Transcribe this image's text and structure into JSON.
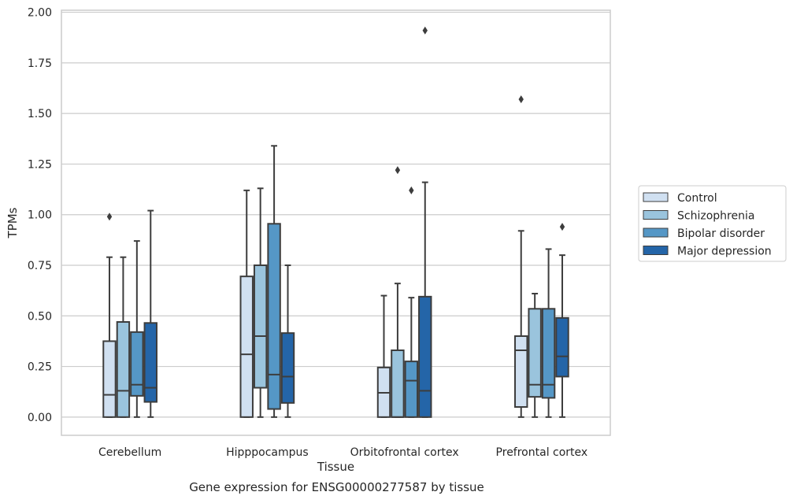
{
  "chart_data": {
    "type": "box",
    "xlabel": "Tissue",
    "ylabel": "TPMs",
    "ylim": [
      -0.09,
      2.01
    ],
    "yticks": [
      "0.00",
      "0.25",
      "0.50",
      "0.75",
      "1.00",
      "1.25",
      "1.50",
      "1.75",
      "2.00"
    ],
    "grid": true,
    "legend_position": "right",
    "categories": [
      "Cerebellum",
      "Hipppocampus",
      "Orbitofrontal cortex",
      "Prefrontal cortex"
    ],
    "series": [
      {
        "name": "Control",
        "color": "#d0e0f1",
        "boxes": [
          {
            "whislo": 0.0,
            "q1": 0.0,
            "med": 0.11,
            "q3": 0.375,
            "whishi": 0.79,
            "fliers": [
              0.99
            ]
          },
          {
            "whislo": 0.0,
            "q1": 0.0,
            "med": 0.31,
            "q3": 0.695,
            "whishi": 1.12,
            "fliers": []
          },
          {
            "whislo": 0.0,
            "q1": 0.0,
            "med": 0.12,
            "q3": 0.245,
            "whishi": 0.6,
            "fliers": []
          },
          {
            "whislo": 0.0,
            "q1": 0.05,
            "med": 0.33,
            "q3": 0.4,
            "whishi": 0.92,
            "fliers": [
              1.57
            ]
          }
        ]
      },
      {
        "name": "Schizophrenia",
        "color": "#9ac4dd",
        "boxes": [
          {
            "whislo": 0.0,
            "q1": 0.0,
            "med": 0.13,
            "q3": 0.47,
            "whishi": 0.79,
            "fliers": []
          },
          {
            "whislo": 0.0,
            "q1": 0.145,
            "med": 0.4,
            "q3": 0.75,
            "whishi": 1.13,
            "fliers": []
          },
          {
            "whislo": 0.0,
            "q1": 0.0,
            "med": 0.0,
            "q3": 0.33,
            "whishi": 0.66,
            "fliers": [
              1.22
            ]
          },
          {
            "whislo": 0.0,
            "q1": 0.1,
            "med": 0.16,
            "q3": 0.535,
            "whishi": 0.61,
            "fliers": []
          }
        ]
      },
      {
        "name": "Bipolar disorder",
        "color": "#5597c6",
        "boxes": [
          {
            "whislo": 0.0,
            "q1": 0.105,
            "med": 0.16,
            "q3": 0.42,
            "whishi": 0.87,
            "fliers": []
          },
          {
            "whislo": 0.0,
            "q1": 0.04,
            "med": 0.21,
            "q3": 0.955,
            "whishi": 1.34,
            "fliers": []
          },
          {
            "whislo": 0.0,
            "q1": 0.0,
            "med": 0.18,
            "q3": 0.275,
            "whishi": 0.59,
            "fliers": [
              1.12
            ]
          },
          {
            "whislo": 0.0,
            "q1": 0.095,
            "med": 0.16,
            "q3": 0.535,
            "whishi": 0.83,
            "fliers": []
          }
        ]
      },
      {
        "name": "Major depression",
        "color": "#2465a8",
        "boxes": [
          {
            "whislo": 0.0,
            "q1": 0.075,
            "med": 0.145,
            "q3": 0.465,
            "whishi": 1.02,
            "fliers": []
          },
          {
            "whislo": 0.0,
            "q1": 0.07,
            "med": 0.2,
            "q3": 0.415,
            "whishi": 0.75,
            "fliers": []
          },
          {
            "whislo": 0.0,
            "q1": 0.0,
            "med": 0.13,
            "q3": 0.595,
            "whishi": 1.16,
            "fliers": [
              1.91
            ]
          },
          {
            "whislo": 0.0,
            "q1": 0.2,
            "med": 0.3,
            "q3": 0.49,
            "whishi": 0.8,
            "fliers": [
              0.94
            ]
          }
        ]
      }
    ],
    "caption": "Gene expression for ENSG00000277587 by tissue"
  }
}
